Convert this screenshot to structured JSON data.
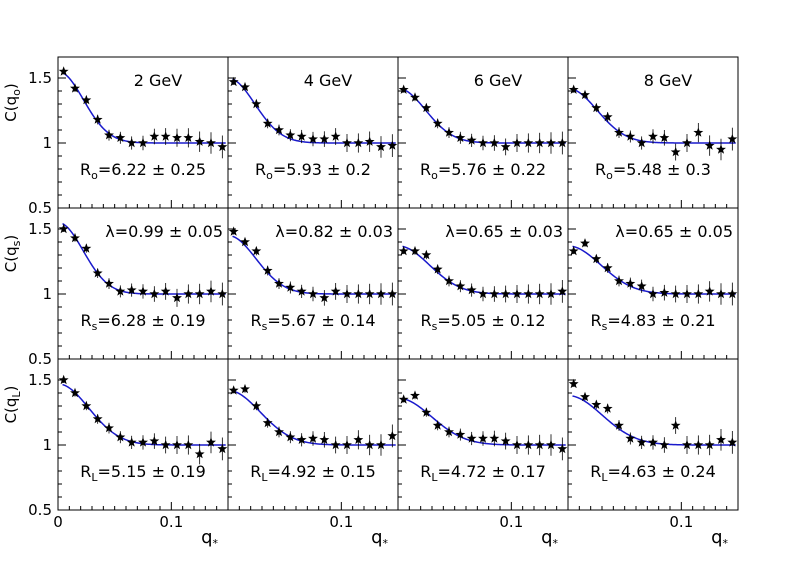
{
  "figure": {
    "energies": [
      "2 GeV",
      "4 GeV",
      "6 GeV",
      "8 GeV"
    ],
    "row_axis_labels": [
      {
        "main": "C(q",
        "sub": "o",
        "close": ")"
      },
      {
        "main": "C(q",
        "sub": "s",
        "close": ")"
      },
      {
        "main": "C(q",
        "sub": "L",
        "close": ")"
      }
    ],
    "x_axis_label": {
      "main": "q",
      "sub": "*"
    },
    "y_ticks": [
      {
        "value": 1.5,
        "label": "1.5"
      },
      {
        "value": 1.0,
        "label": "1"
      },
      {
        "value": 0.5,
        "label": "0.5"
      }
    ],
    "x_ticks": [
      {
        "value": 0,
        "label": "0"
      },
      {
        "value": 0.1,
        "label": "0.1"
      }
    ],
    "colors": {
      "fit_line": "#1a1acc",
      "points": "#000000",
      "frame": "#000000"
    }
  },
  "chart_data": {
    "type": "scatter",
    "layout": "3x4 grid of panels; rows: C(q_o), C(q_s), C(q_L); columns: 2, 4, 6, 8 GeV",
    "xlim": [
      0,
      0.15
    ],
    "ylim": [
      0.5,
      1.6
    ],
    "x": [
      0.005,
      0.015,
      0.025,
      0.035,
      0.045,
      0.055,
      0.065,
      0.075,
      0.085,
      0.095,
      0.105,
      0.115,
      0.125,
      0.135,
      0.145
    ],
    "panels": [
      {
        "row": 0,
        "col": 0,
        "label": "2 GeV",
        "radius_label": {
          "sym": "R",
          "sub": "o",
          "text": "=6.22 ± 0.25"
        },
        "fit": {
          "R": 6.22,
          "lambda": 0.55
        },
        "y": [
          1.55,
          1.42,
          1.33,
          1.18,
          1.06,
          1.04,
          1.0,
          1.0,
          1.05,
          1.05,
          1.04,
          1.04,
          1.01,
          1.0,
          0.97
        ]
      },
      {
        "row": 0,
        "col": 1,
        "label": "4 GeV",
        "radius_label": {
          "sym": "R",
          "sub": "o",
          "text": "=5.93 ± 0.2"
        },
        "fit": {
          "R": 5.93,
          "lambda": 0.5
        },
        "y": [
          1.47,
          1.43,
          1.3,
          1.15,
          1.1,
          1.06,
          1.05,
          1.03,
          1.03,
          1.05,
          1.0,
          1.0,
          1.01,
          0.97,
          0.98
        ]
      },
      {
        "row": 0,
        "col": 2,
        "label": "6 GeV",
        "radius_label": {
          "sym": "R",
          "sub": "o",
          "text": "=5.76 ± 0.22"
        },
        "fit": {
          "R": 5.76,
          "lambda": 0.42
        },
        "y": [
          1.41,
          1.35,
          1.27,
          1.15,
          1.08,
          1.04,
          1.02,
          1.0,
          1.0,
          0.97,
          1.0,
          1.0,
          1.0,
          1.0,
          1.0
        ]
      },
      {
        "row": 0,
        "col": 3,
        "label": "8 GeV",
        "radius_label": {
          "sym": "R",
          "sub": "o",
          "text": "=5.48 ± 0.3"
        },
        "fit": {
          "R": 5.48,
          "lambda": 0.42
        },
        "y": [
          1.41,
          1.37,
          1.27,
          1.2,
          1.08,
          1.05,
          1.0,
          1.05,
          1.04,
          0.93,
          1.0,
          1.08,
          0.98,
          0.95,
          1.03
        ]
      },
      {
        "row": 1,
        "col": 0,
        "label": "2 GeV",
        "lambda_label": "λ=0.99 ± 0.05",
        "radius_label": {
          "sym": "R",
          "sub": "s",
          "text": "=6.28 ± 0.19"
        },
        "fit": {
          "R": 6.28,
          "lambda": 0.55
        },
        "y": [
          1.5,
          1.43,
          1.35,
          1.16,
          1.08,
          1.02,
          1.03,
          1.02,
          1.0,
          1.02,
          0.97,
          1.0,
          1.0,
          1.02,
          1.0
        ]
      },
      {
        "row": 1,
        "col": 1,
        "label": "4 GeV",
        "lambda_label": "λ=0.82 ± 0.03",
        "radius_label": {
          "sym": "R",
          "sub": "s",
          "text": "=5.67 ± 0.14"
        },
        "fit": {
          "R": 5.67,
          "lambda": 0.45
        },
        "y": [
          1.48,
          1.4,
          1.33,
          1.18,
          1.08,
          1.05,
          1.02,
          1.0,
          0.97,
          1.02,
          1.0,
          1.0,
          1.0,
          1.0,
          1.0
        ]
      },
      {
        "row": 1,
        "col": 2,
        "label": "6 GeV",
        "lambda_label": "λ=0.65 ± 0.03",
        "radius_label": {
          "sym": "R",
          "sub": "s",
          "text": "=5.05 ± 0.12"
        },
        "fit": {
          "R": 5.05,
          "lambda": 0.37
        },
        "y": [
          1.33,
          1.33,
          1.3,
          1.19,
          1.1,
          1.06,
          1.03,
          1.0,
          1.0,
          1.0,
          1.0,
          1.0,
          1.0,
          1.0,
          1.02
        ]
      },
      {
        "row": 1,
        "col": 3,
        "label": "8 GeV",
        "lambda_label": "λ=0.65 ± 0.05",
        "radius_label": {
          "sym": "R",
          "sub": "s",
          "text": "=4.83 ± 0.21"
        },
        "fit": {
          "R": 4.83,
          "lambda": 0.37
        },
        "y": [
          1.33,
          1.39,
          1.27,
          1.2,
          1.1,
          1.08,
          1.06,
          1.0,
          1.01,
          1.0,
          1.0,
          1.0,
          1.02,
          1.0,
          1.0
        ]
      },
      {
        "row": 2,
        "col": 0,
        "label": "2 GeV",
        "radius_label": {
          "sym": "R",
          "sub": "L",
          "text": "=5.15 ± 0.19"
        },
        "fit": {
          "R": 5.15,
          "lambda": 0.47
        },
        "y": [
          1.5,
          1.4,
          1.3,
          1.2,
          1.13,
          1.06,
          1.02,
          1.02,
          1.03,
          1.0,
          1.0,
          1.0,
          0.93,
          1.02,
          0.97
        ]
      },
      {
        "row": 2,
        "col": 1,
        "label": "4 GeV",
        "radius_label": {
          "sym": "R",
          "sub": "L",
          "text": "=4.92 ± 0.15"
        },
        "fit": {
          "R": 4.92,
          "lambda": 0.42
        },
        "y": [
          1.42,
          1.43,
          1.3,
          1.17,
          1.1,
          1.06,
          1.04,
          1.05,
          1.04,
          1.0,
          1.0,
          1.04,
          1.0,
          1.0,
          1.07
        ]
      },
      {
        "row": 2,
        "col": 2,
        "label": "6 GeV",
        "radius_label": {
          "sym": "R",
          "sub": "L",
          "text": "=4.72 ± 0.17"
        },
        "fit": {
          "R": 4.72,
          "lambda": 0.36
        },
        "y": [
          1.35,
          1.38,
          1.25,
          1.15,
          1.1,
          1.08,
          1.05,
          1.05,
          1.05,
          1.03,
          1.0,
          1.0,
          1.0,
          1.0,
          0.97
        ]
      },
      {
        "row": 2,
        "col": 3,
        "label": "8 GeV",
        "radius_label": {
          "sym": "R",
          "sub": "L",
          "text": "=4.63 ± 0.24"
        },
        "fit": {
          "R": 4.63,
          "lambda": 0.38
        },
        "y": [
          1.47,
          1.37,
          1.31,
          1.28,
          1.15,
          1.05,
          1.02,
          1.02,
          1.0,
          1.15,
          1.0,
          1.0,
          1.0,
          1.04,
          1.02
        ]
      }
    ]
  }
}
